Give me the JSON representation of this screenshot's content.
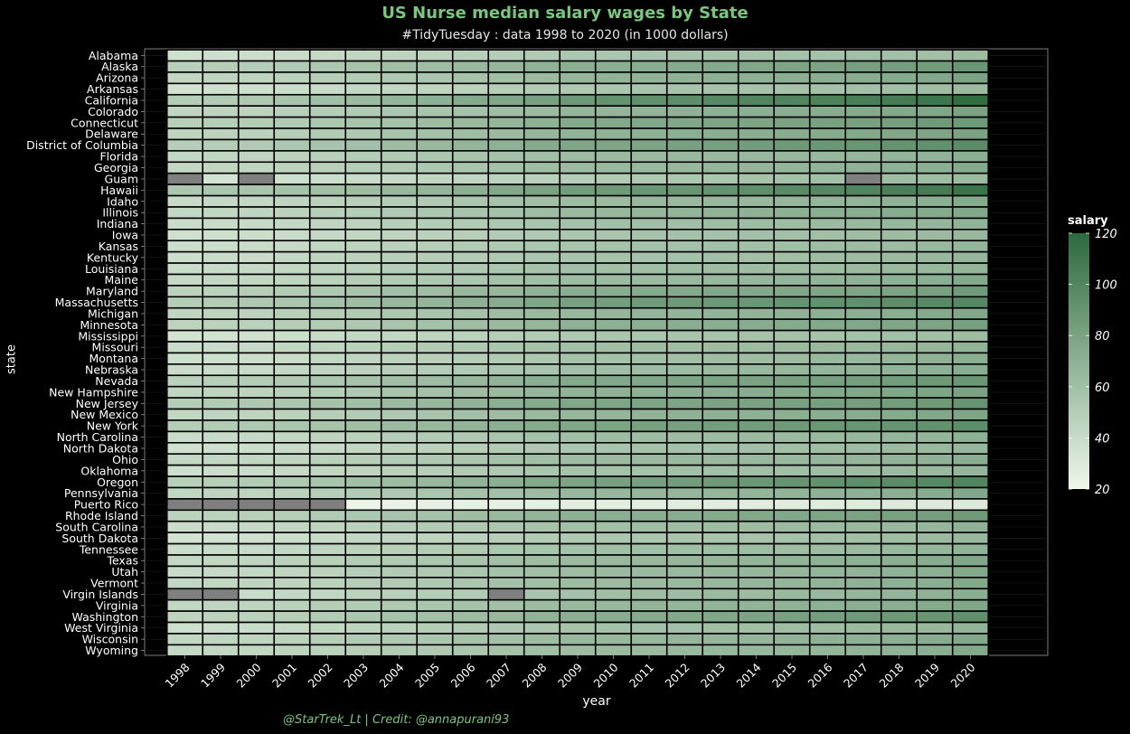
{
  "title": "US Nurse median salary wages by State",
  "subtitle": "#TidyTuesday : data 1998 to 2020 (in 1000 dollars)",
  "caption": "@StarTrek_Lt | Credit: @annapurani93",
  "chart_data": {
    "type": "heatmap",
    "xlabel": "year",
    "ylabel": "state",
    "legend_title": "salary",
    "legend_placement": "right",
    "color_range": [
      20,
      120
    ],
    "color_low": "#eef7ea",
    "color_high": "#2c6a3e",
    "missing_color": "#7f7f7f",
    "legend_ticks": [
      20,
      40,
      60,
      80,
      100,
      120
    ],
    "x": [
      "1998",
      "1999",
      "2000",
      "2001",
      "2002",
      "2003",
      "2004",
      "2005",
      "2006",
      "2007",
      "2008",
      "2009",
      "2010",
      "2011",
      "2012",
      "2013",
      "2014",
      "2015",
      "2016",
      "2017",
      "2018",
      "2019",
      "2020"
    ],
    "y": [
      "Alabama",
      "Alaska",
      "Arizona",
      "Arkansas",
      "California",
      "Colorado",
      "Connecticut",
      "Delaware",
      "District of Columbia",
      "Florida",
      "Georgia",
      "Guam",
      "Hawaii",
      "Idaho",
      "Illinois",
      "Indiana",
      "Iowa",
      "Kansas",
      "Kentucky",
      "Louisiana",
      "Maine",
      "Maryland",
      "Massachusetts",
      "Michigan",
      "Minnesota",
      "Mississippi",
      "Missouri",
      "Montana",
      "Nebraska",
      "Nevada",
      "New Hampshire",
      "New Jersey",
      "New Mexico",
      "New York",
      "North Carolina",
      "North Dakota",
      "Ohio",
      "Oklahoma",
      "Oregon",
      "Pennsylvania",
      "Puerto Rico",
      "Rhode Island",
      "South Carolina",
      "South Dakota",
      "Tennessee",
      "Texas",
      "Utah",
      "Vermont",
      "Virgin Islands",
      "Virginia",
      "Washington",
      "West Virginia",
      "Wisconsin",
      "Wyoming"
    ],
    "values": [
      [
        36,
        37,
        38,
        40,
        41,
        43,
        45,
        46,
        48,
        50,
        52,
        54,
        55,
        56,
        57,
        57,
        57,
        58,
        58,
        59,
        59,
        60,
        62
      ],
      [
        48,
        49,
        50,
        52,
        54,
        57,
        60,
        62,
        64,
        66,
        69,
        71,
        72,
        73,
        74,
        75,
        77,
        79,
        80,
        82,
        83,
        84,
        88
      ],
      [
        43,
        44,
        45,
        47,
        49,
        51,
        53,
        55,
        57,
        60,
        63,
        66,
        68,
        68,
        69,
        70,
        70,
        71,
        72,
        73,
        74,
        76,
        80
      ],
      [
        35,
        36,
        37,
        38,
        40,
        42,
        43,
        45,
        47,
        49,
        51,
        53,
        55,
        56,
        56,
        57,
        57,
        57,
        58,
        59,
        60,
        61,
        63
      ],
      [
        50,
        51,
        53,
        56,
        59,
        63,
        67,
        70,
        74,
        77,
        82,
        87,
        91,
        93,
        95,
        98,
        100,
        101,
        103,
        105,
        107,
        111,
        118
      ],
      [
        44,
        45,
        46,
        48,
        50,
        52,
        54,
        56,
        58,
        61,
        63,
        66,
        67,
        68,
        69,
        70,
        71,
        72,
        73,
        74,
        75,
        77,
        80
      ],
      [
        48,
        49,
        50,
        52,
        54,
        56,
        58,
        61,
        64,
        67,
        70,
        74,
        75,
        76,
        77,
        78,
        79,
        80,
        81,
        82,
        83,
        85,
        87
      ],
      [
        45,
        46,
        47,
        49,
        51,
        53,
        56,
        58,
        61,
        63,
        66,
        68,
        69,
        70,
        71,
        72,
        72,
        73,
        74,
        75,
        77,
        78,
        80
      ],
      [
        49,
        50,
        52,
        54,
        56,
        59,
        62,
        64,
        67,
        70,
        74,
        77,
        78,
        79,
        81,
        82,
        84,
        86,
        88,
        89,
        91,
        93,
        96
      ],
      [
        42,
        43,
        44,
        46,
        48,
        50,
        52,
        54,
        56,
        58,
        60,
        62,
        63,
        63,
        64,
        64,
        64,
        65,
        65,
        66,
        67,
        68,
        71
      ],
      [
        42,
        43,
        44,
        46,
        48,
        50,
        52,
        54,
        56,
        58,
        61,
        63,
        64,
        64,
        65,
        66,
        66,
        67,
        68,
        69,
        70,
        71,
        74
      ],
      [
        null,
        34,
        null,
        37,
        38,
        40,
        41,
        43,
        44,
        46,
        48,
        50,
        52,
        53,
        54,
        55,
        57,
        58,
        59,
        null,
        61,
        62,
        63
      ],
      [
        54,
        55,
        56,
        58,
        60,
        62,
        65,
        67,
        71,
        75,
        80,
        84,
        86,
        88,
        89,
        91,
        94,
        97,
        99,
        101,
        104,
        107,
        113
      ],
      [
        40,
        41,
        42,
        44,
        46,
        48,
        50,
        52,
        55,
        58,
        60,
        62,
        63,
        64,
        64,
        65,
        65,
        66,
        67,
        68,
        69,
        71,
        74
      ],
      [
        42,
        43,
        44,
        46,
        48,
        50,
        52,
        54,
        56,
        58,
        61,
        63,
        65,
        66,
        67,
        68,
        69,
        70,
        71,
        72,
        73,
        74,
        76
      ],
      [
        39,
        40,
        41,
        42,
        44,
        46,
        48,
        50,
        52,
        54,
        56,
        58,
        59,
        60,
        60,
        61,
        61,
        62,
        63,
        64,
        65,
        66,
        68
      ],
      [
        36,
        37,
        38,
        39,
        41,
        43,
        45,
        47,
        49,
        51,
        53,
        55,
        56,
        57,
        58,
        58,
        59,
        59,
        60,
        61,
        62,
        63,
        65
      ],
      [
        38,
        38,
        39,
        41,
        43,
        45,
        47,
        49,
        51,
        53,
        55,
        56,
        57,
        58,
        58,
        59,
        59,
        60,
        61,
        62,
        63,
        64,
        66
      ],
      [
        38,
        39,
        40,
        42,
        44,
        46,
        48,
        49,
        51,
        53,
        55,
        56,
        57,
        58,
        58,
        59,
        59,
        60,
        61,
        62,
        63,
        64,
        66
      ],
      [
        39,
        40,
        41,
        43,
        45,
        47,
        49,
        51,
        53,
        55,
        57,
        59,
        60,
        60,
        61,
        61,
        61,
        62,
        62,
        63,
        64,
        65,
        67
      ],
      [
        41,
        42,
        43,
        45,
        47,
        49,
        51,
        53,
        55,
        58,
        60,
        62,
        63,
        63,
        64,
        65,
        66,
        67,
        68,
        69,
        70,
        72,
        75
      ],
      [
        46,
        47,
        49,
        51,
        53,
        56,
        59,
        61,
        64,
        66,
        69,
        72,
        73,
        74,
        75,
        76,
        76,
        77,
        78,
        79,
        80,
        82,
        85
      ],
      [
        50,
        51,
        53,
        55,
        58,
        61,
        64,
        67,
        70,
        73,
        77,
        81,
        83,
        85,
        86,
        87,
        88,
        90,
        92,
        93,
        95,
        97,
        99
      ],
      [
        44,
        45,
        46,
        48,
        50,
        52,
        54,
        56,
        58,
        61,
        63,
        65,
        66,
        67,
        67,
        68,
        68,
        69,
        70,
        71,
        72,
        74,
        76
      ],
      [
        45,
        46,
        47,
        49,
        51,
        53,
        56,
        58,
        61,
        63,
        66,
        69,
        70,
        71,
        72,
        72,
        73,
        74,
        75,
        76,
        77,
        79,
        82
      ],
      [
        35,
        35,
        36,
        38,
        40,
        42,
        43,
        45,
        47,
        49,
        51,
        53,
        55,
        55,
        56,
        56,
        57,
        57,
        57,
        58,
        59,
        60,
        62
      ],
      [
        39,
        40,
        41,
        43,
        45,
        47,
        49,
        51,
        53,
        55,
        57,
        59,
        60,
        61,
        61,
        62,
        62,
        63,
        64,
        64,
        65,
        66,
        68
      ],
      [
        37,
        37,
        38,
        40,
        42,
        44,
        46,
        48,
        50,
        52,
        54,
        57,
        58,
        59,
        60,
        61,
        62,
        63,
        64,
        65,
        67,
        69,
        72
      ],
      [
        39,
        39,
        40,
        42,
        44,
        46,
        48,
        50,
        52,
        54,
        56,
        59,
        60,
        61,
        62,
        63,
        64,
        65,
        66,
        67,
        68,
        70,
        73
      ],
      [
        47,
        48,
        50,
        52,
        54,
        57,
        60,
        62,
        65,
        68,
        71,
        75,
        76,
        77,
        78,
        79,
        80,
        81,
        82,
        83,
        84,
        86,
        88
      ],
      [
        44,
        45,
        46,
        48,
        50,
        53,
        56,
        58,
        61,
        63,
        66,
        68,
        69,
        70,
        71,
        72,
        73,
        74,
        75,
        76,
        77,
        78,
        80
      ],
      [
        50,
        51,
        53,
        55,
        57,
        60,
        63,
        65,
        68,
        71,
        74,
        77,
        78,
        79,
        79,
        80,
        80,
        81,
        82,
        83,
        84,
        86,
        90
      ],
      [
        43,
        44,
        45,
        47,
        49,
        51,
        53,
        56,
        59,
        61,
        64,
        66,
        67,
        68,
        69,
        70,
        70,
        71,
        72,
        73,
        74,
        76,
        78
      ],
      [
        50,
        51,
        53,
        55,
        57,
        60,
        63,
        65,
        68,
        71,
        74,
        77,
        79,
        81,
        82,
        83,
        84,
        86,
        88,
        89,
        90,
        92,
        94
      ],
      [
        39,
        40,
        41,
        43,
        45,
        47,
        49,
        51,
        53,
        56,
        58,
        60,
        61,
        61,
        62,
        62,
        63,
        63,
        64,
        65,
        66,
        67,
        70
      ],
      [
        36,
        37,
        38,
        39,
        41,
        43,
        45,
        47,
        49,
        51,
        53,
        55,
        56,
        57,
        58,
        58,
        59,
        60,
        61,
        62,
        63,
        64,
        66
      ],
      [
        42,
        42,
        43,
        45,
        47,
        49,
        51,
        53,
        55,
        58,
        60,
        62,
        63,
        63,
        64,
        64,
        64,
        65,
        66,
        67,
        68,
        69,
        72
      ],
      [
        37,
        38,
        39,
        41,
        43,
        45,
        47,
        49,
        51,
        53,
        55,
        57,
        58,
        58,
        59,
        59,
        60,
        60,
        61,
        62,
        63,
        64,
        66
      ],
      [
        48,
        49,
        51,
        53,
        56,
        59,
        62,
        65,
        68,
        71,
        75,
        79,
        81,
        82,
        84,
        86,
        88,
        90,
        92,
        94,
        96,
        98,
        101
      ],
      [
        43,
        44,
        45,
        47,
        49,
        51,
        53,
        55,
        57,
        59,
        62,
        64,
        65,
        66,
        66,
        67,
        67,
        68,
        69,
        70,
        71,
        73,
        76
      ],
      [
        null,
        null,
        null,
        null,
        null,
        22,
        23,
        24,
        25,
        24,
        25,
        26,
        26,
        26,
        27,
        27,
        27,
        27,
        28,
        28,
        29,
        29,
        30
      ],
      [
        46,
        47,
        48,
        50,
        52,
        54,
        56,
        58,
        61,
        64,
        67,
        70,
        71,
        72,
        73,
        74,
        75,
        76,
        78,
        80,
        81,
        83,
        86
      ],
      [
        39,
        40,
        41,
        43,
        45,
        47,
        49,
        51,
        53,
        55,
        57,
        59,
        60,
        61,
        61,
        62,
        62,
        63,
        63,
        64,
        65,
        66,
        69
      ],
      [
        34,
        35,
        36,
        38,
        40,
        42,
        44,
        45,
        47,
        49,
        51,
        53,
        54,
        55,
        56,
        56,
        57,
        58,
        59,
        60,
        61,
        63,
        65
      ],
      [
        38,
        39,
        40,
        42,
        44,
        46,
        48,
        50,
        52,
        54,
        56,
        58,
        59,
        59,
        60,
        60,
        61,
        61,
        62,
        63,
        64,
        66,
        68
      ],
      [
        42,
        43,
        44,
        46,
        48,
        50,
        52,
        54,
        56,
        59,
        61,
        63,
        64,
        65,
        66,
        66,
        67,
        68,
        69,
        70,
        71,
        73,
        76
      ],
      [
        40,
        41,
        42,
        44,
        46,
        49,
        51,
        53,
        55,
        58,
        60,
        62,
        63,
        63,
        64,
        65,
        65,
        66,
        67,
        68,
        69,
        71,
        75
      ],
      [
        42,
        43,
        44,
        45,
        47,
        49,
        51,
        53,
        55,
        58,
        60,
        62,
        63,
        63,
        64,
        65,
        66,
        67,
        68,
        69,
        70,
        72,
        75
      ],
      [
        null,
        null,
        40,
        42,
        44,
        46,
        48,
        50,
        52,
        null,
        56,
        58,
        60,
        61,
        62,
        63,
        63,
        64,
        65,
        66,
        67,
        69,
        72
      ],
      [
        43,
        44,
        45,
        47,
        49,
        51,
        53,
        55,
        57,
        59,
        62,
        64,
        65,
        66,
        67,
        68,
        68,
        69,
        70,
        71,
        72,
        74,
        77
      ],
      [
        45,
        46,
        47,
        49,
        51,
        54,
        57,
        59,
        62,
        65,
        68,
        72,
        73,
        74,
        75,
        77,
        79,
        81,
        83,
        85,
        87,
        89,
        93
      ],
      [
        37,
        38,
        39,
        41,
        43,
        45,
        47,
        49,
        51,
        53,
        55,
        57,
        58,
        59,
        59,
        60,
        60,
        61,
        62,
        63,
        64,
        65,
        68
      ],
      [
        43,
        44,
        45,
        47,
        49,
        51,
        53,
        55,
        57,
        59,
        62,
        64,
        65,
        65,
        66,
        66,
        67,
        68,
        69,
        70,
        71,
        73,
        76
      ],
      [
        41,
        42,
        43,
        45,
        47,
        49,
        51,
        53,
        55,
        57,
        60,
        62,
        63,
        63,
        64,
        65,
        65,
        66,
        67,
        68,
        69,
        71,
        75
      ]
    ]
  }
}
